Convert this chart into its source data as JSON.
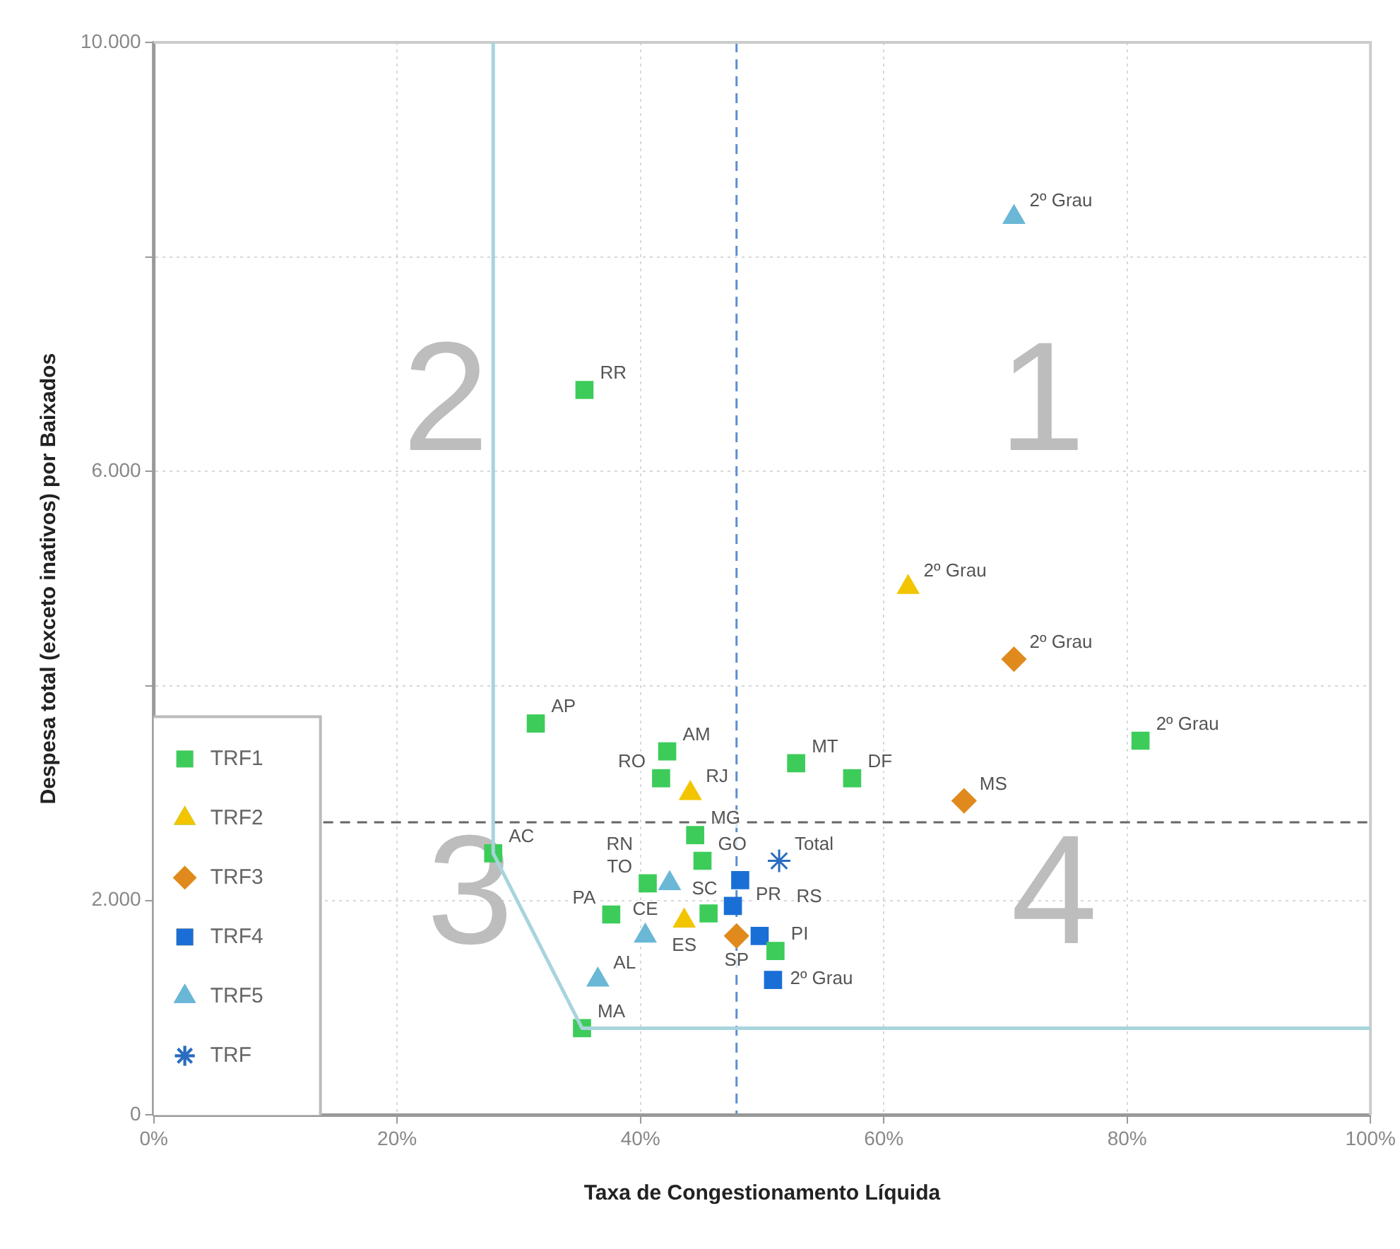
{
  "chart_data": {
    "type": "scatter",
    "xlabel": "Taxa de Congestionamento Líquida",
    "ylabel": "Despesa total (exceto inativos) por Baixados",
    "xlim": [
      0,
      100
    ],
    "xticks": [
      {
        "value": 0,
        "label": "0%"
      },
      {
        "value": 20,
        "label": "20%"
      },
      {
        "value": 40,
        "label": "40%"
      },
      {
        "value": 60,
        "label": "60%"
      },
      {
        "value": 80,
        "label": "80%"
      },
      {
        "value": 100,
        "label": "100%"
      }
    ],
    "ylim": [
      0,
      10000
    ],
    "yticks": [
      {
        "value": 0,
        "label": "0"
      },
      {
        "value": 2000,
        "label": "2.000"
      },
      {
        "value": 4000,
        "label": null
      },
      {
        "value": 6000,
        "label": "6.000"
      },
      {
        "value": 8000,
        "label": null
      },
      {
        "value": 10000,
        "label": "10.000"
      }
    ],
    "grid": true,
    "legend": "bottom left",
    "series": [
      {
        "name": "TRF1",
        "type": "scatter",
        "marker": "square",
        "color": "#3dcc5a",
        "x": [
          35.4,
          31.4,
          42.2,
          41.7,
          27.9,
          37.6,
          40.6,
          35.2,
          52.8,
          57.4,
          44.5,
          45.1,
          45.6,
          51.1,
          81.1
        ],
        "values": [
          6760,
          3650,
          3390,
          3140,
          2440,
          1870,
          2160,
          810,
          3280,
          3140,
          2610,
          2370,
          1880,
          1530,
          3490
        ]
      },
      {
        "name": "TRF2",
        "type": "scatter",
        "marker": "triangle",
        "color": "#f2c500",
        "x": [
          44.1,
          43.6,
          62.0
        ],
        "values": [
          3000,
          1810,
          4920
        ]
      },
      {
        "name": "TRF3",
        "type": "scatter",
        "marker": "diamond",
        "color": "#e08a1e",
        "x": [
          47.9,
          66.6,
          70.7
        ],
        "values": [
          1670,
          2930,
          4250
        ]
      },
      {
        "name": "TRF4",
        "type": "scatter",
        "marker": "square",
        "color": "#1a6fd6",
        "x": [
          48.2,
          47.6,
          49.8,
          50.9
        ],
        "values": [
          2190,
          1950,
          1670,
          1260
        ]
      },
      {
        "name": "TRF5",
        "type": "scatter",
        "marker": "triangle",
        "color": "#6ab7d6",
        "x": [
          36.5,
          40.4,
          42.4,
          70.7
        ],
        "values": [
          1260,
          1670,
          2160,
          8370
        ]
      },
      {
        "name": "TRF",
        "type": "scatter",
        "marker": "cross",
        "color": "#2a6cc0",
        "x": [
          51.4
        ],
        "values": [
          2370
        ]
      },
      {
        "type": "line",
        "marker": "none",
        "line_style": "solid",
        "color": "#a8d4dc",
        "x": [
          27.9,
          27.9,
          35.2,
          100
        ],
        "values": [
          10000,
          2440,
          810,
          810
        ]
      }
    ],
    "ref_lines": [
      {
        "axis": "x",
        "value": 47.9,
        "color": "#5b8fd0",
        "line_style": "dashed"
      },
      {
        "axis": "y",
        "value": 2730,
        "color": "#666666",
        "line_style": "dashed"
      }
    ],
    "annotations": [
      "1",
      "2",
      "3",
      "4",
      {
        "text": "RR",
        "x": 35.4,
        "y": 6760
      },
      {
        "text": "AP",
        "x": 31.4,
        "y": 3650
      },
      {
        "text": "AM",
        "x": 42.2,
        "y": 3390
      },
      {
        "text": "RO",
        "x": 41.7,
        "y": 3140
      },
      {
        "text": "AC",
        "x": 27.9,
        "y": 2440
      },
      {
        "text": "PA",
        "x": 37.6,
        "y": 1870
      },
      {
        "text": "TO",
        "x": 40.6,
        "y": 2160
      },
      {
        "text": "MA",
        "x": 35.2,
        "y": 810
      },
      {
        "text": "MT",
        "x": 52.8,
        "y": 3280
      },
      {
        "text": "DF",
        "x": 57.4,
        "y": 3140
      },
      {
        "text": "MG",
        "x": 44.5,
        "y": 2610
      },
      {
        "text": "GO",
        "x": 45.1,
        "y": 2370
      },
      {
        "text": "PI",
        "x": 51.1,
        "y": 1530
      },
      {
        "text": "2º Grau",
        "x": 81.1,
        "y": 3490
      },
      {
        "text": "RJ",
        "x": 44.1,
        "y": 3000
      },
      {
        "text": "ES",
        "x": 43.6,
        "y": 1810
      },
      {
        "text": "2º Grau",
        "x": 62.0,
        "y": 4920
      },
      {
        "text": "SP",
        "x": 47.9,
        "y": 1670
      },
      {
        "text": "MS",
        "x": 66.6,
        "y": 2930
      },
      {
        "text": "2º Grau",
        "x": 70.7,
        "y": 4250
      },
      {
        "text": "PR",
        "x": 48.2,
        "y": 2190
      },
      {
        "text": "SC",
        "x": 47.6,
        "y": 1950
      },
      {
        "text": "RS",
        "x": 49.8,
        "y": 1670
      },
      {
        "text": "2º Grau",
        "x": 50.9,
        "y": 1260
      },
      {
        "text": "AL",
        "x": 36.5,
        "y": 1260
      },
      {
        "text": "CE",
        "x": 40.4,
        "y": 1670
      },
      {
        "text": "RN",
        "x": 42.4,
        "y": 2160
      },
      {
        "text": "2º Grau",
        "x": 70.7,
        "y": 8370
      },
      {
        "text": "Total",
        "x": 51.4,
        "y": 2370
      }
    ]
  }
}
